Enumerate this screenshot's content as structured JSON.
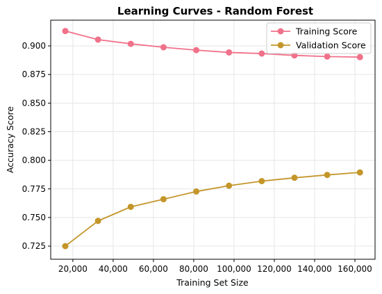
{
  "chart_data": {
    "type": "line",
    "title": "Learning Curves - Random Forest",
    "xlabel": "Training Set Size",
    "ylabel": "Accuracy Score",
    "x": [
      16250,
      32500,
      48750,
      65000,
      81250,
      97500,
      113750,
      130000,
      146250,
      162500
    ],
    "xlim": [
      9000,
      170000
    ],
    "ylim": [
      0.7135,
      0.9225
    ],
    "xticks": [
      20000,
      40000,
      60000,
      80000,
      100000,
      120000,
      140000,
      160000
    ],
    "xtick_labels": [
      "20,000",
      "40,000",
      "60,000",
      "80,000",
      "100,000",
      "120,000",
      "140,000",
      "160,000"
    ],
    "yticks": [
      0.725,
      0.75,
      0.775,
      0.8,
      0.825,
      0.85,
      0.875,
      0.9
    ],
    "ytick_labels": [
      "0.725",
      "0.750",
      "0.775",
      "0.800",
      "0.825",
      "0.850",
      "0.875",
      "0.900"
    ],
    "grid": true,
    "legend_position": "top-right",
    "series": [
      {
        "name": "Training Score",
        "color": "#f0718a",
        "values": [
          0.913,
          0.9055,
          0.9018,
          0.8988,
          0.8963,
          0.8943,
          0.8933,
          0.8917,
          0.8907,
          0.8902
        ]
      },
      {
        "name": "Validation Score",
        "color": "#c4962a",
        "values": [
          0.725,
          0.747,
          0.7593,
          0.766,
          0.7727,
          0.7778,
          0.7818,
          0.7847,
          0.7872,
          0.7894
        ]
      }
    ]
  }
}
